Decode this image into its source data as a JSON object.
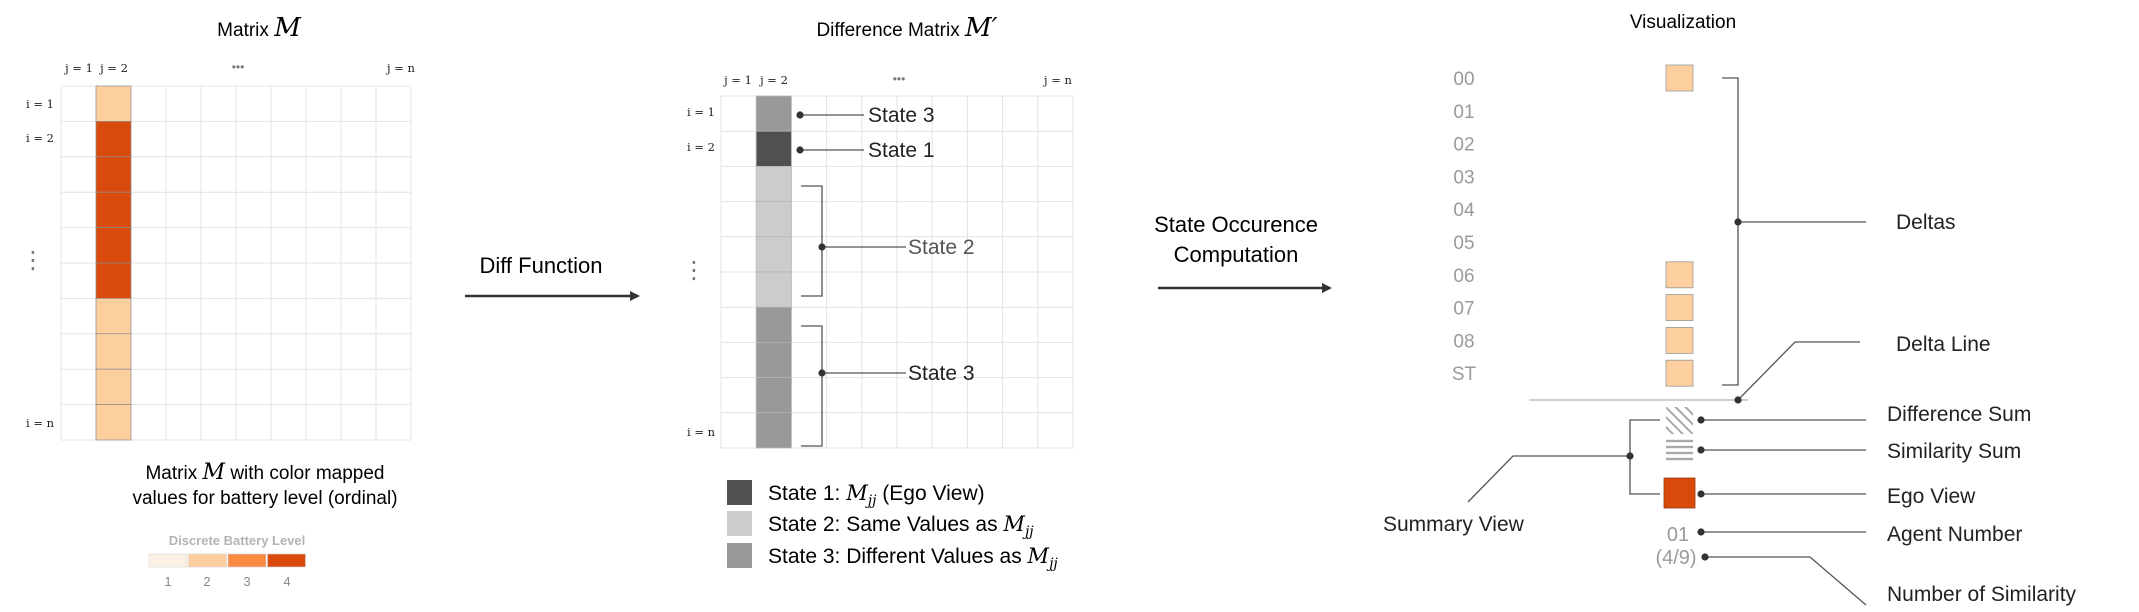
{
  "palette": {
    "battery": [
      "#fdf0e4",
      "#fdcf9f",
      "#f98b43",
      "#d84b0c"
    ],
    "ego": "#d84b0c",
    "state1": "#505050",
    "state2": "#cccccc",
    "state3": "#999999",
    "grid": "#e3e3e3",
    "line": "#555555",
    "label_gray": "#9a9a9a",
    "text": "#222222"
  },
  "matrix": {
    "title": "Matrix",
    "symbol": "M",
    "col_labels": [
      "j = 1",
      "j = 2",
      "•••",
      "j = n"
    ],
    "row_labels": [
      "i = 1",
      "i = 2",
      "⋮",
      "i = n"
    ],
    "cell_levels": [
      2,
      4,
      4,
      4,
      4,
      4,
      2,
      2,
      2,
      2
    ],
    "caption_line1_pre": "Matrix",
    "caption_symbol": "M",
    "caption_line1_post": "with color mapped",
    "caption_line2": "values for battery level (ordinal)",
    "legend_title": "Discrete Battery Level",
    "legend_levels": [
      "1",
      "2",
      "3",
      "4"
    ]
  },
  "diff_function_label": "Diff Function",
  "difference_matrix": {
    "title": "Difference Matrix",
    "symbol": "M′",
    "col_labels": [
      "j = 1",
      "j = 2",
      "•••",
      "j = n"
    ],
    "row_labels": [
      "i = 1",
      "i = 2",
      "⋮",
      "i = n"
    ],
    "cell_states": [
      3,
      1,
      2,
      2,
      2,
      2,
      3,
      3,
      3,
      3
    ],
    "annotations": [
      "State 3",
      "State 1",
      "State 2",
      "State 3"
    ],
    "legend": [
      {
        "state": 1,
        "label": "State 1:",
        "math": "Mjj",
        "suffix": "(Ego View)"
      },
      {
        "state": 2,
        "label": "State 2: Same Values as",
        "math": "Mjj",
        "suffix": ""
      },
      {
        "state": 3,
        "label": "State 3: Different Values as",
        "math": "Mjj",
        "suffix": ""
      }
    ]
  },
  "occurrence_label_line1": "State Occurence",
  "occurrence_label_line2": "Computation",
  "visualization": {
    "title": "Visualization",
    "rows": [
      "00",
      "01",
      "02",
      "03",
      "04",
      "05",
      "06",
      "07",
      "08",
      "ST"
    ],
    "delta_present": [
      true,
      false,
      false,
      false,
      false,
      false,
      true,
      true,
      true,
      true
    ],
    "agent_number": "01",
    "similarity_count": "(4/9)",
    "labels": {
      "deltas": "Deltas",
      "delta_line": "Delta Line",
      "difference_sum": "Difference Sum",
      "similarity_sum": "Similarity Sum",
      "ego_view": "Ego View",
      "agent_number": "Agent Number",
      "number_of_similarity": "Number of Similarity",
      "summary_view": "Summary View"
    }
  }
}
